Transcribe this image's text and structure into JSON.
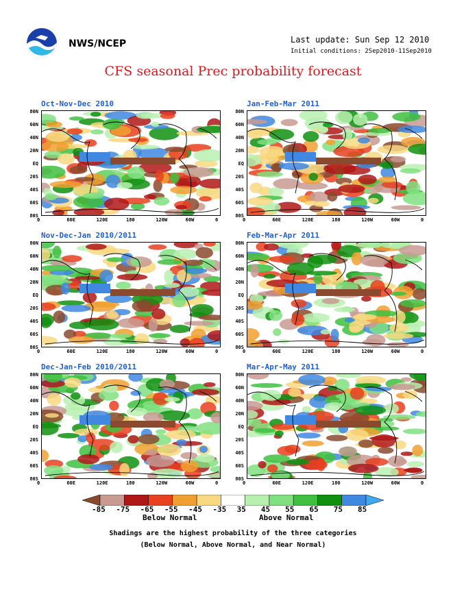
{
  "header": {
    "agency": "NWS/NCEP",
    "last_update": "Last update: Sun Sep 12 2010",
    "initial_conditions": "Initial conditions: 2Sep2010-11Sep2010",
    "title": "CFS seasonal Prec probability forecast"
  },
  "map_axes": {
    "y_labels": [
      "80N",
      "60N",
      "40N",
      "20N",
      "EQ",
      "20S",
      "40S",
      "60S",
      "80S"
    ],
    "x_labels": [
      "0",
      "60E",
      "120E",
      "180",
      "120W",
      "60W",
      "0"
    ]
  },
  "panels": [
    {
      "title": "Oct-Nov-Dec 2010"
    },
    {
      "title": "Jan-Feb-Mar 2011"
    },
    {
      "title": "Nov-Dec-Jan 2010/2011"
    },
    {
      "title": "Feb-Mar-Apr 2011"
    },
    {
      "title": "Dec-Jan-Feb 2010/2011"
    },
    {
      "title": "Mar-Apr-May 2011"
    }
  ],
  "legend": {
    "ticks": [
      "-85",
      "-75",
      "-65",
      "-55",
      "-45",
      "-35",
      "35",
      "45",
      "55",
      "65",
      "75",
      "85"
    ],
    "colors": [
      "#8b4a2e",
      "#c89a92",
      "#b01818",
      "#e84020",
      "#f0a030",
      "#f8d880",
      "#ffffff",
      "#b8f0b0",
      "#80e080",
      "#40c040",
      "#109010",
      "#4088e0",
      "#40a8f0"
    ],
    "below_label": "Below Normal",
    "above_label": "Above Normal"
  },
  "notes": {
    "line1": "Shadings are the highest probability of the three categories",
    "line2": "(Below Normal, Above Normal, and Near Normal)"
  }
}
